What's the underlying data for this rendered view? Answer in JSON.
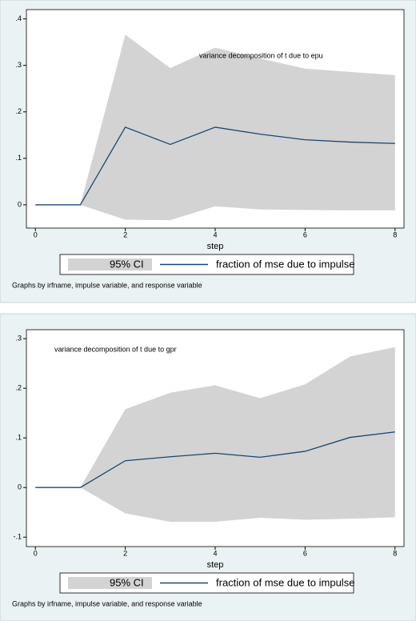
{
  "chart_data": [
    {
      "type": "line",
      "title": "variance decomposition of t due to epu",
      "x_label": "step",
      "note": "Graphs by irfname, impulse variable, and response variable",
      "x": [
        0,
        1,
        2,
        3,
        4,
        5,
        6,
        7,
        8
      ],
      "series": [
        {
          "name": "95% CI",
          "color": "#d3d3d3",
          "upper": [
            0,
            0,
            0.366,
            0.294,
            0.338,
            0.315,
            0.293,
            0.286,
            0.279
          ],
          "lower": [
            0,
            0,
            -0.032,
            -0.033,
            -0.003,
            -0.01,
            -0.011,
            -0.012,
            -0.012
          ]
        },
        {
          "name": "fraction of mse due to impulse",
          "color": "#1a476f",
          "values": [
            0,
            0,
            0.167,
            0.13,
            0.167,
            0.152,
            0.14,
            0.135,
            0.132
          ]
        }
      ],
      "xlim": [
        -0.2,
        8.2
      ],
      "xticks": [
        0,
        2,
        4,
        6,
        8
      ],
      "ylim": [
        -0.05,
        0.42
      ],
      "yticks": [
        0,
        {
          "value": 0.1,
          "label": ".1"
        },
        {
          "value": 0.2,
          "label": ".2"
        },
        {
          "value": 0.3,
          "label": ".3"
        },
        {
          "value": 0.4,
          "label": ".4"
        }
      ]
    },
    {
      "type": "line",
      "title": "variance decomposition of t due to gpr",
      "x_label": "step",
      "note": "Graphs by irfname, impulse variable, and response variable",
      "x": [
        0,
        1,
        2,
        3,
        4,
        5,
        6,
        7,
        8
      ],
      "series": [
        {
          "name": "95% CI",
          "color": "#d3d3d3",
          "upper": [
            0,
            0,
            0.158,
            0.191,
            0.206,
            0.18,
            0.208,
            0.264,
            0.283
          ],
          "lower": [
            0,
            0,
            -0.052,
            -0.069,
            -0.069,
            -0.061,
            -0.065,
            -0.063,
            -0.06
          ]
        },
        {
          "name": "fraction of mse due to impulse",
          "color": "#1a476f",
          "values": [
            0,
            0,
            0.054,
            0.062,
            0.069,
            0.061,
            0.073,
            0.101,
            0.112
          ]
        }
      ],
      "xlim": [
        -0.2,
        8.2
      ],
      "xticks": [
        0,
        2,
        4,
        6,
        8
      ],
      "ylim": [
        -0.119,
        0.318
      ],
      "yticks": [
        {
          "value": -0.1,
          "label": "-.1"
        },
        0,
        {
          "value": 0.1,
          "label": ".1"
        },
        {
          "value": 0.2,
          "label": ".2"
        },
        {
          "value": 0.3,
          "label": ".3"
        }
      ]
    }
  ]
}
